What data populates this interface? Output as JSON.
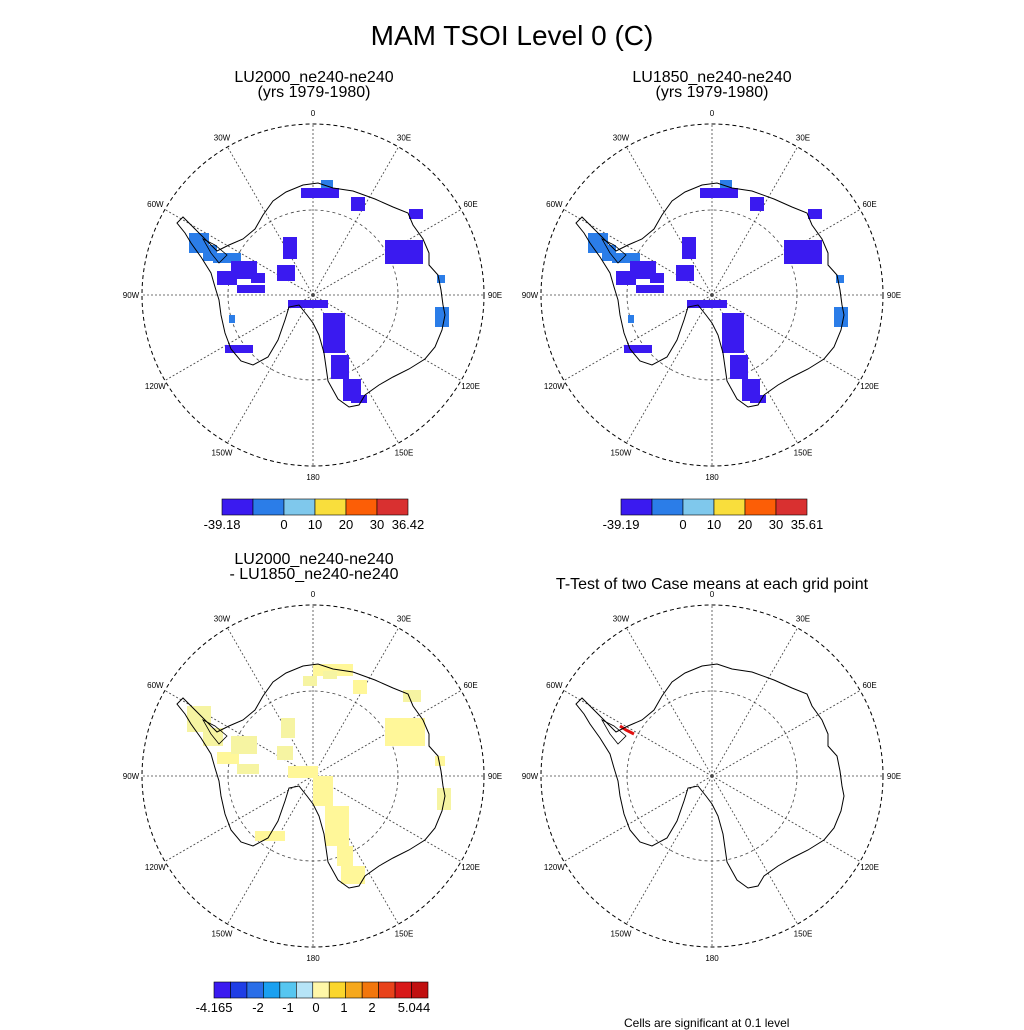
{
  "main_title": "MAM TSOI Level 0 (C)",
  "panels": [
    {
      "title_line1": "LU2000_ne240-ne240",
      "title_line2": "(yrs 1979-1980)"
    },
    {
      "title_line1": "LU1850_ne240-ne240",
      "title_line2": "(yrs 1979-1980)"
    },
    {
      "title_line1": "LU2000_ne240-ne240",
      "title_line2": "- LU1850_ne240-ne240"
    },
    {
      "title_line1": "T-Test of two Case means at each grid point",
      "title_line2": ""
    }
  ],
  "longitude_labels": [
    "0",
    "30E",
    "60E",
    "90E",
    "120E",
    "150E",
    "180",
    "150W",
    "120W",
    "90W",
    "60W",
    "30W"
  ],
  "colorbars": [
    {
      "colors": [
        "#3a1af0",
        "#2b7de8",
        "#7fc8ec",
        "#f9de3c",
        "#fc5e06",
        "#d93030"
      ],
      "labels": [
        "-39.18",
        "0",
        "10",
        "20",
        "30",
        "36.42"
      ]
    },
    {
      "colors": [
        "#3a1af0",
        "#2b7de8",
        "#7fc8ec",
        "#f9de3c",
        "#fc5e06",
        "#d93030"
      ],
      "labels": [
        "-39.19",
        "0",
        "10",
        "20",
        "30",
        "35.61"
      ]
    },
    {
      "colors": [
        "#3a1af0",
        "#1f3ee6",
        "#2a6ee8",
        "#1aa0f0",
        "#56c6f0",
        "#b6e4f7",
        "#fff7a8",
        "#fbd62c",
        "#f6a81c",
        "#f2760c",
        "#e8421a",
        "#d81818",
        "#c01010"
      ],
      "labels": [
        "-4.165",
        "-2",
        "-1",
        "0",
        "1",
        "2",
        "5.044"
      ]
    }
  ],
  "footnote": "Cells are significant at 0.1 level"
}
